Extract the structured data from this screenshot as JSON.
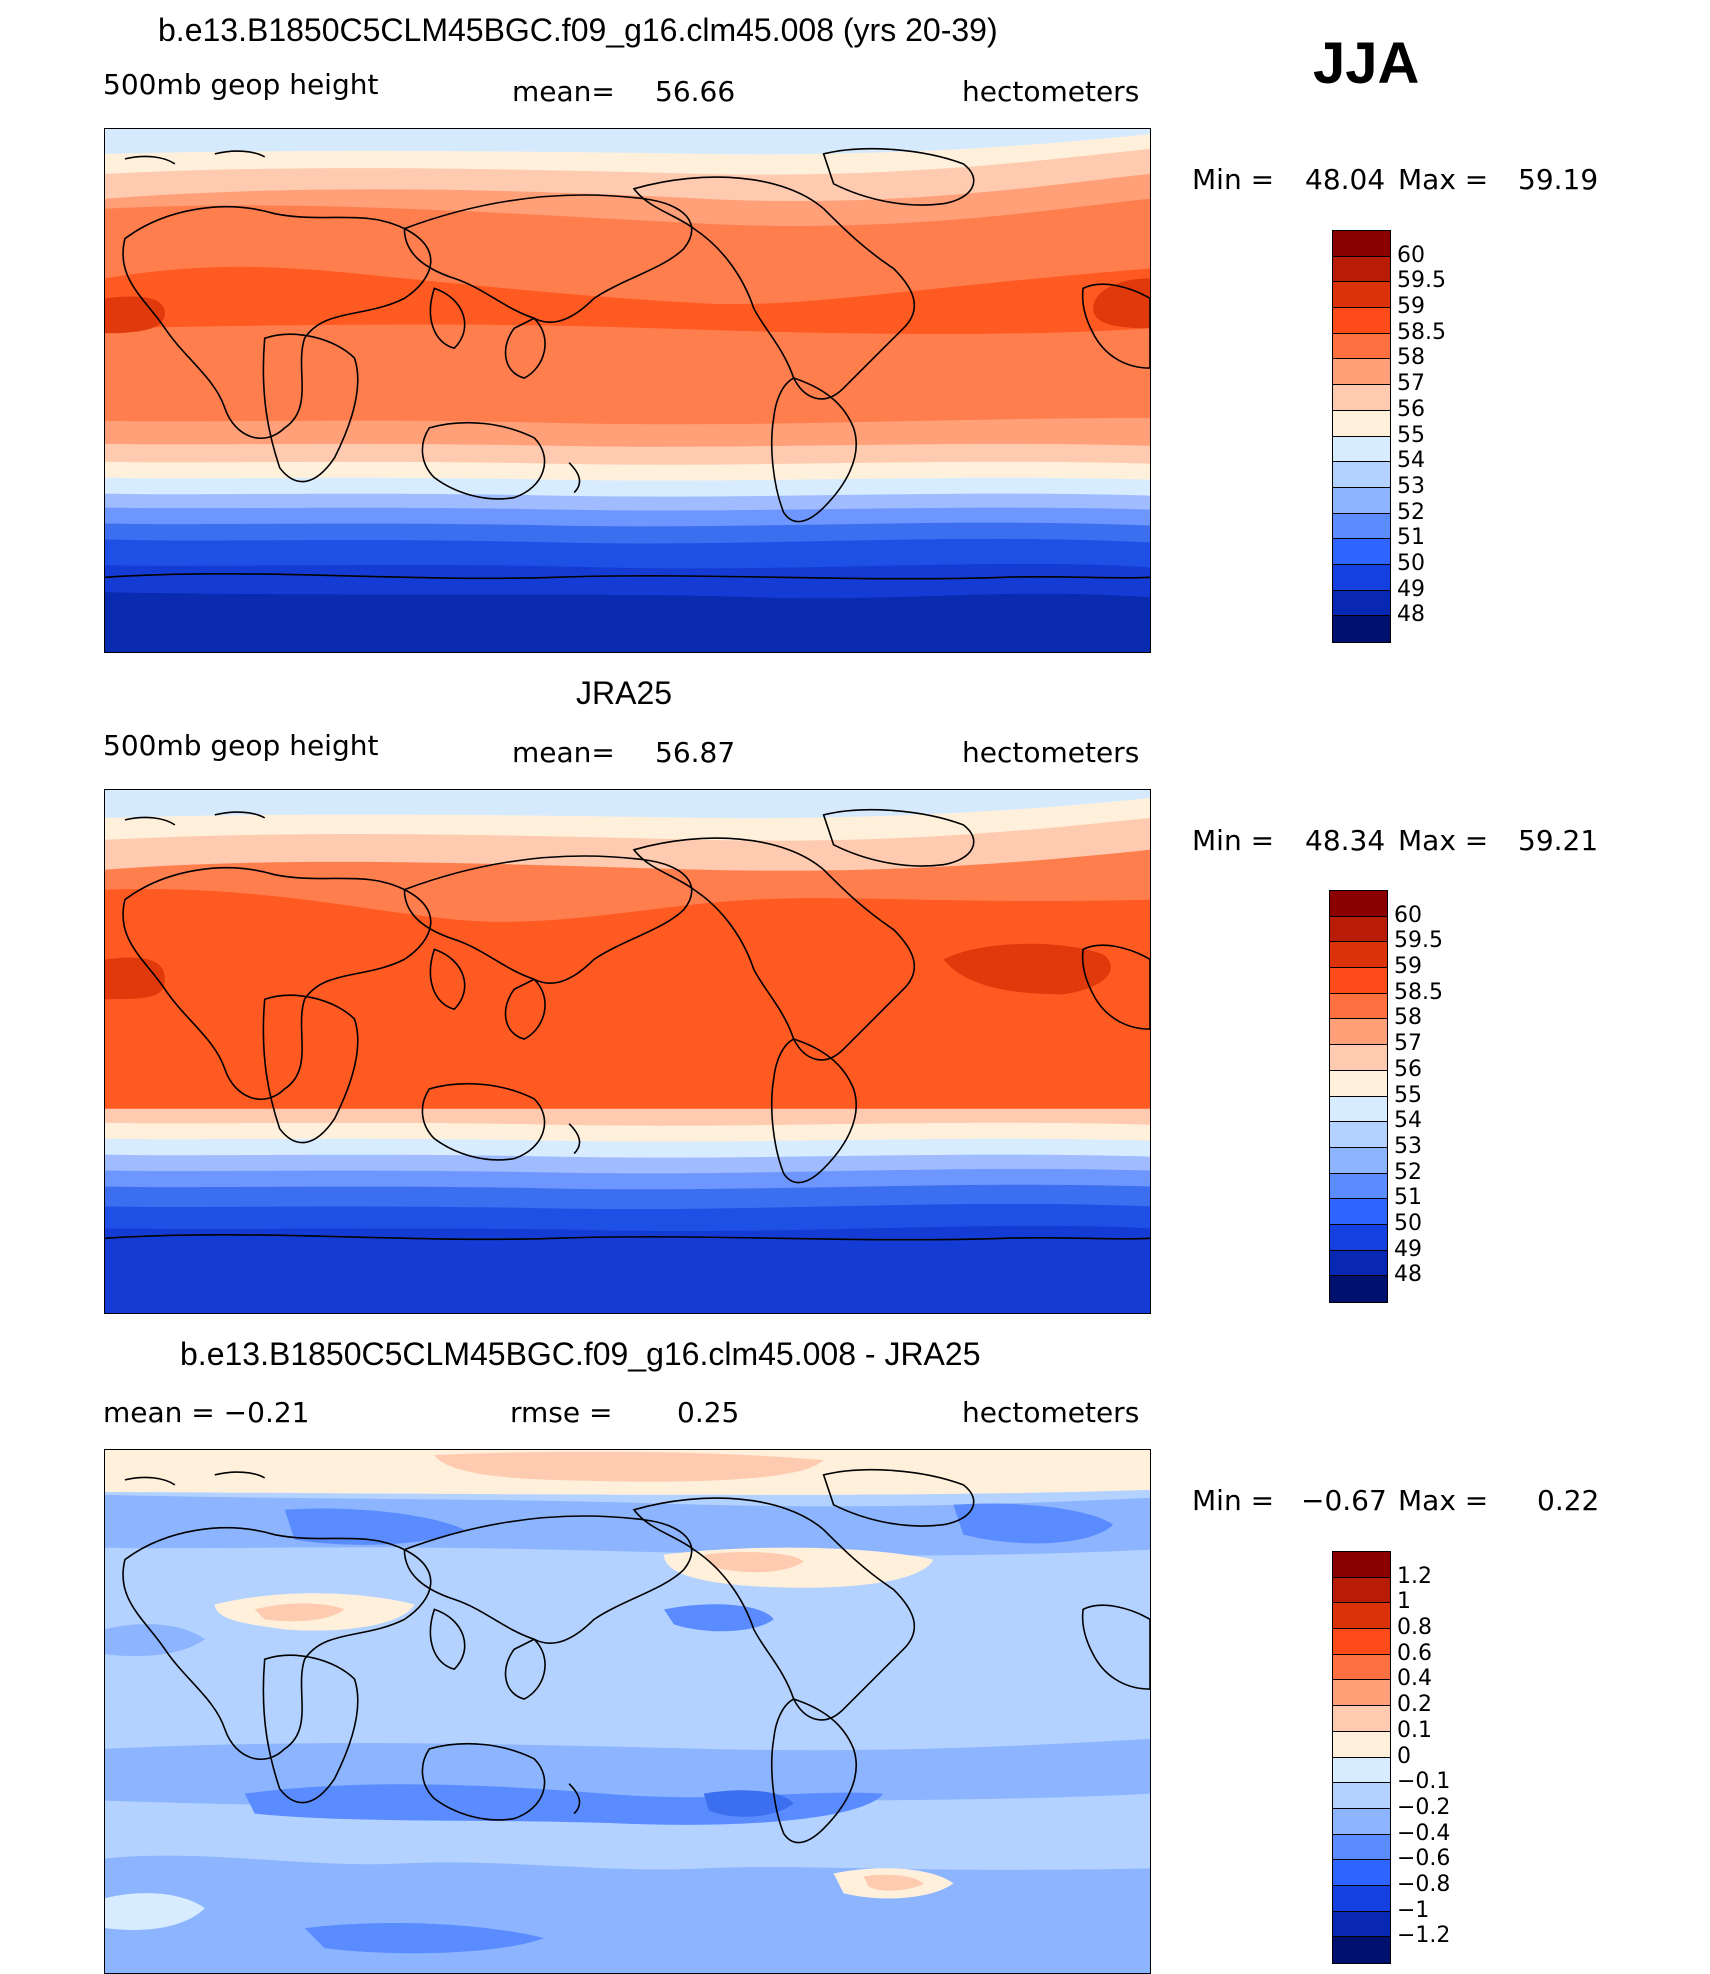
{
  "season": "JJA",
  "panels": [
    {
      "id": "model",
      "title": "b.e13.B1850C5CLM45BGC.f09_g16.clm45.008 (yrs 20-39)",
      "left": "500mb  geop  height",
      "mid_label": "mean=",
      "mid_value": "56.66",
      "units": "hectometers",
      "min_label": "Min  =",
      "min_value": "48.04",
      "max_label": "Max  =",
      "max_value": "59.19",
      "legend": [
        "60",
        "59.5",
        "59",
        "58.5",
        "58",
        "57",
        "56",
        "55",
        "54",
        "53",
        "52",
        "51",
        "50",
        "49",
        "48"
      ],
      "legend_colors": [
        "#8b0000",
        "#b81c06",
        "#dc320a",
        "#ff4a1a",
        "#ff7040",
        "#ffa078",
        "#ffcbb0",
        "#fff0dc",
        "#d8ecff",
        "#b4d2ff",
        "#8cb4ff",
        "#5a8cff",
        "#2e64ff",
        "#1440e0",
        "#0828b4",
        "#00106e"
      ],
      "colors": {
        "polar_s": "#0a2ab0",
        "s2": "#143cd4",
        "s3": "#1e50e6",
        "s4": "#3c6ef0",
        "s5": "#6e96ff",
        "s6": "#a0bcff",
        "s7": "#d8ecff",
        "m1": "#fff0dc",
        "m2": "#ffcbb0",
        "m3": "#ffa078",
        "m4": "#ff7e4e",
        "m5": "#ff5a22",
        "m6": "#e03a0c",
        "arctic": "#d6eafe"
      }
    },
    {
      "id": "obs",
      "title": "JRA25",
      "left": "500mb  geop  height",
      "mid_label": "mean=",
      "mid_value": "56.87",
      "units": "hectometers",
      "min_label": "Min  =",
      "min_value": "48.34",
      "max_label": "Max  =",
      "max_value": "59.21",
      "legend": [
        "60",
        "59.5",
        "59",
        "58.5",
        "58",
        "57",
        "56",
        "55",
        "54",
        "53",
        "52",
        "51",
        "50",
        "49",
        "48"
      ],
      "legend_colors": [
        "#8b0000",
        "#b81c06",
        "#dc320a",
        "#ff4a1a",
        "#ff7040",
        "#ffa078",
        "#ffcbb0",
        "#fff0dc",
        "#d8ecff",
        "#b4d2ff",
        "#8cb4ff",
        "#5a8cff",
        "#2e64ff",
        "#1440e0",
        "#0828b4",
        "#00106e"
      ]
    },
    {
      "id": "diff",
      "title": "b.e13.B1850C5CLM45BGC.f09_g16.clm45.008 - JRA25",
      "left": "mean  =    −0.21",
      "mid_label": "rmse  =",
      "mid_value": "0.25",
      "units": "hectometers",
      "min_label": "Min  =",
      "min_value": "−0.67",
      "max_label": "Max  =",
      "max_value": "0.22",
      "legend": [
        "1.2",
        "1",
        "0.8",
        "0.6",
        "0.4",
        "0.2",
        "0.1",
        "0",
        "−0.1",
        "−0.2",
        "−0.4",
        "−0.6",
        "−0.8",
        "−1",
        "−1.2"
      ],
      "legend_colors": [
        "#8b0000",
        "#b81c06",
        "#dc320a",
        "#ff4a1a",
        "#ff7040",
        "#ffa078",
        "#ffcbb0",
        "#fff0dc",
        "#d8ecff",
        "#b4d2ff",
        "#8cb4ff",
        "#5a8cff",
        "#2e64ff",
        "#1440e0",
        "#0828b4",
        "#00106e"
      ]
    }
  ]
}
